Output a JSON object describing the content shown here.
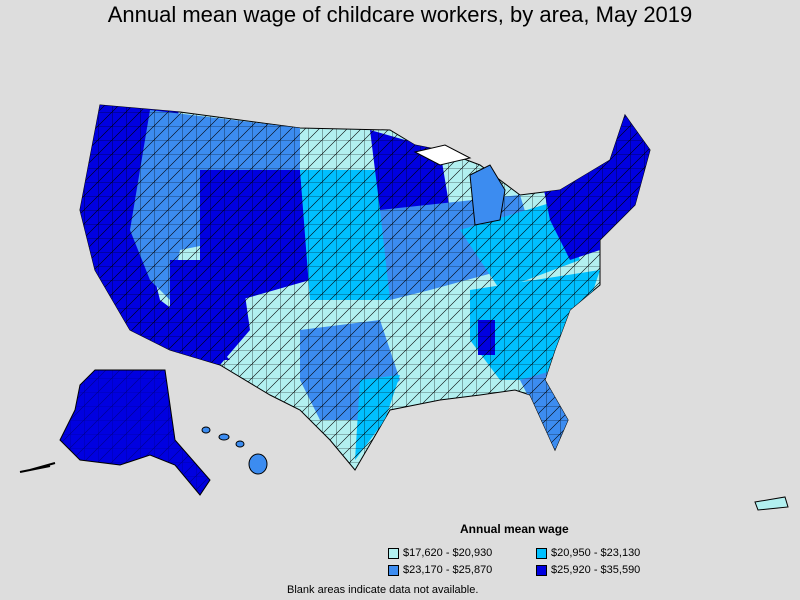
{
  "title": "Annual mean wage of childcare workers, by area, May 2019",
  "legend": {
    "title": "Annual mean wage",
    "items": [
      {
        "label": "$17,620 - $20,930",
        "color": "#b2f0f0"
      },
      {
        "label": "$20,950 - $23,130",
        "color": "#00c0ff"
      },
      {
        "label": "$23,170 - $25,870",
        "color": "#3c8cf0"
      },
      {
        "label": "$25,920 - $35,590",
        "color": "#0000e0"
      }
    ]
  },
  "footnote": "Blank areas indicate data not available.",
  "colors": {
    "background": "#dddddd",
    "border": "#000000",
    "no_data": "#ffffff"
  }
}
